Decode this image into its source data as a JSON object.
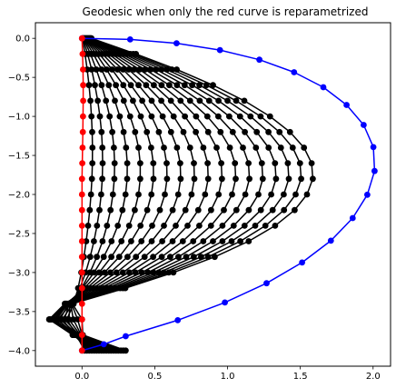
{
  "chart_data": {
    "type": "line",
    "title": "Geodesic when only the red curve is reparametrized",
    "xlabel": "",
    "ylabel": "",
    "xlim": [
      -0.32,
      2.12
    ],
    "ylim": [
      -4.2,
      0.2
    ],
    "xticks": [
      "0.0",
      "0.5",
      "1.0",
      "1.5",
      "2.0"
    ],
    "yticks": [
      "0.0",
      "−0.5",
      "−1.0",
      "−1.5",
      "−2.0",
      "−2.5",
      "−3.0",
      "−3.5",
      "−4.0"
    ],
    "xtick_values": [
      0,
      0.5,
      1,
      1.5,
      2
    ],
    "ytick_values": [
      0,
      -0.5,
      -1,
      -1.5,
      -2,
      -2.5,
      -3,
      -3.5,
      -4
    ],
    "grid": false,
    "legend": "none",
    "styles": {
      "start_curve_color": "#ff0000",
      "end_curve_color": "#0000ff",
      "intermediate_color": "#000000",
      "marker": "circle"
    },
    "points_per_curve": 21,
    "curve_count": 20,
    "series": [
      {
        "x": [
          0.0,
          0.004,
          0.007,
          0.008,
          0.008,
          0.007,
          0.006,
          0.004,
          0.002,
          0.0,
          0.0,
          0.0,
          0.0,
          0.0,
          0.0,
          0.0,
          0.0,
          0.0,
          0.0,
          0.0,
          0.0
        ],
        "y": [
          0.0,
          -0.2,
          -0.4,
          -0.6,
          -0.8,
          -1.0,
          -1.2,
          -1.4,
          -1.6,
          -1.8,
          -2.0,
          -2.2,
          -2.4,
          -2.6,
          -2.8,
          -3.0,
          -3.2,
          -3.4,
          -3.6,
          -3.8,
          -4.0
        ]
      },
      {
        "x": [
          0.004,
          0.021,
          0.036,
          0.048,
          0.058,
          0.065,
          0.07,
          0.072,
          0.071,
          0.068,
          0.062,
          0.053,
          0.042,
          0.029,
          0.013,
          -0.005,
          -0.027,
          -0.057,
          -0.105,
          -0.037,
          0.017
        ],
        "y": [
          0.0,
          -0.2,
          -0.4,
          -0.6,
          -0.8,
          -1.0,
          -1.2,
          -1.4,
          -1.6,
          -1.8,
          -2.0,
          -2.2,
          -2.4,
          -2.6,
          -2.8,
          -3.0,
          -3.2,
          -3.4,
          -3.6,
          -3.8,
          -4.0
        ]
      },
      {
        "x": [
          0.007,
          0.039,
          0.066,
          0.089,
          0.108,
          0.123,
          0.134,
          0.14,
          0.142,
          0.139,
          0.132,
          0.12,
          0.103,
          0.082,
          0.056,
          0.025,
          -0.014,
          -0.063,
          -0.135,
          -0.048,
          0.033
        ],
        "y": [
          0.0,
          -0.2,
          -0.4,
          -0.6,
          -0.8,
          -1.0,
          -1.2,
          -1.4,
          -1.6,
          -1.8,
          -2.0,
          -2.2,
          -2.4,
          -2.6,
          -2.8,
          -3.0,
          -3.2,
          -3.4,
          -3.6,
          -3.8,
          -4.0
        ]
      },
      {
        "x": [
          0.011,
          0.058,
          0.099,
          0.135,
          0.165,
          0.19,
          0.208,
          0.219,
          0.224,
          0.222,
          0.212,
          0.196,
          0.172,
          0.141,
          0.102,
          0.055,
          -0.003,
          -0.075,
          -0.165,
          -0.055,
          0.05
        ],
        "y": [
          0.0,
          -0.2,
          -0.4,
          -0.6,
          -0.8,
          -1.0,
          -1.2,
          -1.4,
          -1.6,
          -1.8,
          -2.0,
          -2.2,
          -2.4,
          -2.6,
          -2.8,
          -3.0,
          -3.2,
          -3.4,
          -3.6,
          -3.8,
          -4.0
        ]
      },
      {
        "x": [
          0.014,
          0.078,
          0.135,
          0.184,
          0.226,
          0.26,
          0.286,
          0.303,
          0.311,
          0.31,
          0.299,
          0.278,
          0.246,
          0.203,
          0.149,
          0.083,
          0.003,
          -0.093,
          -0.19,
          -0.06,
          0.067
        ],
        "y": [
          0.0,
          -0.2,
          -0.4,
          -0.6,
          -0.8,
          -1.0,
          -1.2,
          -1.4,
          -1.6,
          -1.8,
          -2.0,
          -2.2,
          -2.4,
          -2.6,
          -2.8,
          -3.0,
          -3.2,
          -3.4,
          -3.6,
          -3.8,
          -4.0
        ]
      },
      {
        "x": [
          0.018,
          0.098,
          0.17,
          0.233,
          0.287,
          0.331,
          0.365,
          0.388,
          0.4,
          0.4,
          0.388,
          0.363,
          0.324,
          0.271,
          0.202,
          0.118,
          0.016,
          -0.105,
          -0.21,
          -0.063,
          0.084
        ],
        "y": [
          0.0,
          -0.2,
          -0.4,
          -0.6,
          -0.8,
          -1.0,
          -1.2,
          -1.4,
          -1.6,
          -1.8,
          -2.0,
          -2.2,
          -2.4,
          -2.6,
          -2.8,
          -3.0,
          -3.2,
          -3.4,
          -3.6,
          -3.8,
          -4.0
        ]
      },
      {
        "x": [
          0.021,
          0.119,
          0.207,
          0.284,
          0.35,
          0.404,
          0.446,
          0.475,
          0.49,
          0.491,
          0.477,
          0.448,
          0.402,
          0.338,
          0.256,
          0.155,
          0.033,
          -0.113,
          -0.22,
          -0.064,
          0.1
        ],
        "y": [
          0.0,
          -0.2,
          -0.4,
          -0.6,
          -0.8,
          -1.0,
          -1.2,
          -1.4,
          -1.6,
          -1.8,
          -2.0,
          -2.2,
          -2.4,
          -2.6,
          -2.8,
          -3.0,
          -3.2,
          -3.4,
          -3.6,
          -3.8,
          -4.0
        ]
      },
      {
        "x": [
          0.025,
          0.14,
          0.244,
          0.336,
          0.414,
          0.478,
          0.528,
          0.563,
          0.582,
          0.584,
          0.569,
          0.535,
          0.482,
          0.408,
          0.313,
          0.195,
          0.053,
          -0.117,
          -0.225,
          -0.063,
          0.117
        ],
        "y": [
          0.0,
          -0.2,
          -0.4,
          -0.6,
          -0.8,
          -1.0,
          -1.2,
          -1.4,
          -1.6,
          -1.8,
          -2.0,
          -2.2,
          -2.4,
          -2.6,
          -2.8,
          -3.0,
          -3.2,
          -3.4,
          -3.6,
          -3.8,
          -4.0
        ]
      },
      {
        "x": [
          0.029,
          0.161,
          0.282,
          0.388,
          0.479,
          0.554,
          0.612,
          0.653,
          0.675,
          0.678,
          0.661,
          0.623,
          0.563,
          0.479,
          0.371,
          0.237,
          0.075,
          -0.118,
          -0.225,
          -0.06,
          0.134
        ],
        "y": [
          0.0,
          -0.2,
          -0.4,
          -0.6,
          -0.8,
          -1.0,
          -1.2,
          -1.4,
          -1.6,
          -1.8,
          -2.0,
          -2.2,
          -2.4,
          -2.6,
          -2.8,
          -3.0,
          -3.2,
          -3.4,
          -3.6,
          -3.8,
          -4.0
        ]
      },
      {
        "x": [
          0.032,
          0.183,
          0.32,
          0.441,
          0.545,
          0.63,
          0.697,
          0.743,
          0.769,
          0.772,
          0.753,
          0.711,
          0.644,
          0.551,
          0.43,
          0.281,
          0.1,
          -0.115,
          -0.22,
          -0.055,
          0.15
        ],
        "y": [
          0.0,
          -0.2,
          -0.4,
          -0.6,
          -0.8,
          -1.0,
          -1.2,
          -1.4,
          -1.6,
          -1.8,
          -2.0,
          -2.2,
          -2.4,
          -2.6,
          -2.8,
          -3.0,
          -3.2,
          -3.4,
          -3.6,
          -3.8,
          -4.0
        ]
      },
      {
        "x": [
          0.036,
          0.204,
          0.358,
          0.494,
          0.611,
          0.707,
          0.782,
          0.834,
          0.863,
          0.867,
          0.846,
          0.799,
          0.725,
          0.622,
          0.489,
          0.325,
          0.126,
          -0.11,
          -0.21,
          -0.049,
          0.167
        ],
        "y": [
          0.0,
          -0.2,
          -0.4,
          -0.6,
          -0.8,
          -1.0,
          -1.2,
          -1.4,
          -1.6,
          -1.8,
          -2.0,
          -2.2,
          -2.4,
          -2.6,
          -2.8,
          -3.0,
          -3.2,
          -3.4,
          -3.6,
          -3.8,
          -4.0
        ]
      },
      {
        "x": [
          0.04,
          0.226,
          0.396,
          0.547,
          0.677,
          0.784,
          0.867,
          0.925,
          0.957,
          0.962,
          0.939,
          0.887,
          0.806,
          0.693,
          0.548,
          0.368,
          0.152,
          -0.104,
          -0.195,
          -0.042,
          0.184
        ],
        "y": [
          0.0,
          -0.2,
          -0.4,
          -0.6,
          -0.8,
          -1.0,
          -1.2,
          -1.4,
          -1.6,
          -1.8,
          -2.0,
          -2.2,
          -2.4,
          -2.6,
          -2.8,
          -3.0,
          -3.2,
          -3.4,
          -3.6,
          -3.8,
          -4.0
        ]
      },
      {
        "x": [
          0.043,
          0.247,
          0.434,
          0.6,
          0.743,
          0.861,
          0.952,
          1.016,
          1.051,
          1.056,
          1.031,
          0.975,
          0.886,
          0.764,
          0.606,
          0.411,
          0.177,
          -0.097,
          -0.175,
          -0.034,
          0.2
        ],
        "y": [
          0.0,
          -0.2,
          -0.4,
          -0.6,
          -0.8,
          -1.0,
          -1.2,
          -1.4,
          -1.6,
          -1.8,
          -2.0,
          -2.2,
          -2.4,
          -2.6,
          -2.8,
          -3.0,
          -3.2,
          -3.4,
          -3.6,
          -3.8,
          -4.0
        ]
      },
      {
        "x": [
          0.047,
          0.269,
          0.472,
          0.653,
          0.809,
          0.937,
          1.036,
          1.106,
          1.144,
          1.15,
          1.122,
          1.061,
          0.965,
          0.833,
          0.662,
          0.453,
          0.201,
          -0.093,
          -0.15,
          -0.027,
          0.217
        ],
        "y": [
          0.0,
          -0.2,
          -0.4,
          -0.6,
          -0.8,
          -1.0,
          -1.2,
          -1.4,
          -1.6,
          -1.8,
          -2.0,
          -2.2,
          -2.4,
          -2.6,
          -2.8,
          -3.0,
          -3.2,
          -3.4,
          -3.6,
          -3.8,
          -4.0
        ]
      },
      {
        "x": [
          0.051,
          0.29,
          0.51,
          0.705,
          0.874,
          1.012,
          1.119,
          1.195,
          1.236,
          1.242,
          1.212,
          1.146,
          1.042,
          0.9,
          0.716,
          0.491,
          0.222,
          -0.088,
          -0.12,
          -0.02,
          0.234
        ],
        "y": [
          0.0,
          -0.2,
          -0.4,
          -0.6,
          -0.8,
          -1.0,
          -1.2,
          -1.4,
          -1.6,
          -1.8,
          -2.0,
          -2.2,
          -2.4,
          -2.6,
          -2.8,
          -3.0,
          -3.2,
          -3.4,
          -3.6,
          -3.8,
          -4.0
        ]
      },
      {
        "x": [
          0.054,
          0.311,
          0.547,
          0.757,
          0.938,
          1.086,
          1.201,
          1.282,
          1.326,
          1.333,
          1.3,
          1.229,
          1.117,
          0.965,
          0.768,
          0.528,
          0.243,
          -0.083,
          -0.09,
          -0.013,
          0.25
        ],
        "y": [
          0.0,
          -0.2,
          -0.4,
          -0.6,
          -0.8,
          -1.0,
          -1.2,
          -1.4,
          -1.6,
          -1.8,
          -2.0,
          -2.2,
          -2.4,
          -2.6,
          -2.8,
          -3.0,
          -3.2,
          -3.4,
          -3.6,
          -3.8,
          -4.0
        ]
      },
      {
        "x": [
          0.058,
          0.332,
          0.583,
          0.807,
          1.0,
          1.158,
          1.281,
          1.367,
          1.414,
          1.421,
          1.386,
          1.31,
          1.19,
          1.028,
          0.818,
          0.562,
          0.262,
          -0.078,
          -0.06,
          -0.006,
          0.267
        ],
        "y": [
          0.0,
          -0.2,
          -0.4,
          -0.6,
          -0.8,
          -1.0,
          -1.2,
          -1.4,
          -1.6,
          -1.8,
          -2.0,
          -2.2,
          -2.4,
          -2.6,
          -2.8,
          -3.0,
          -3.2,
          -3.4,
          -3.6,
          -3.8,
          -4.0
        ]
      },
      {
        "x": [
          0.061,
          0.352,
          0.618,
          0.855,
          1.059,
          1.227,
          1.357,
          1.448,
          1.498,
          1.506,
          1.468,
          1.388,
          1.26,
          1.088,
          0.866,
          0.596,
          0.281,
          -0.072,
          -0.03,
          0.0,
          0.284
        ],
        "y": [
          0.0,
          -0.2,
          -0.4,
          -0.6,
          -0.8,
          -1.0,
          -1.2,
          -1.4,
          -1.6,
          -1.8,
          -2.0,
          -2.2,
          -2.4,
          -2.6,
          -2.8,
          -3.0,
          -3.2,
          -3.4,
          -3.6,
          -3.8,
          -4.0
        ]
      },
      {
        "x": [
          0.065,
          0.371,
          0.651,
          0.9,
          1.115,
          1.292,
          1.429,
          1.525,
          1.578,
          1.586,
          1.546,
          1.461,
          1.327,
          1.145,
          0.912,
          0.628,
          0.298,
          -0.066,
          0.0,
          0.006,
          0.3
        ],
        "y": [
          0.0,
          -0.2,
          -0.4,
          -0.6,
          -0.8,
          -1.0,
          -1.2,
          -1.4,
          -1.6,
          -1.8,
          -2.0,
          -2.2,
          -2.4,
          -2.6,
          -2.8,
          -3.0,
          -3.2,
          -3.4,
          -3.6,
          -3.8,
          -4.0
        ]
      },
      {
        "x": [
          0.0,
          0.331,
          0.65,
          0.948,
          1.219,
          1.457,
          1.658,
          1.818,
          1.935,
          2.002,
          2.01,
          1.96,
          1.86,
          1.71,
          1.512,
          1.268,
          0.982,
          0.658,
          0.3,
          0.15,
          0.0
        ],
        "y": [
          0.0,
          -0.014,
          -0.063,
          -0.15,
          -0.274,
          -0.434,
          -0.627,
          -0.853,
          -1.109,
          -1.393,
          -1.7,
          -2.004,
          -2.303,
          -2.593,
          -2.872,
          -3.137,
          -3.384,
          -3.611,
          -3.816,
          -3.92,
          -4.0
        ]
      }
    ]
  }
}
